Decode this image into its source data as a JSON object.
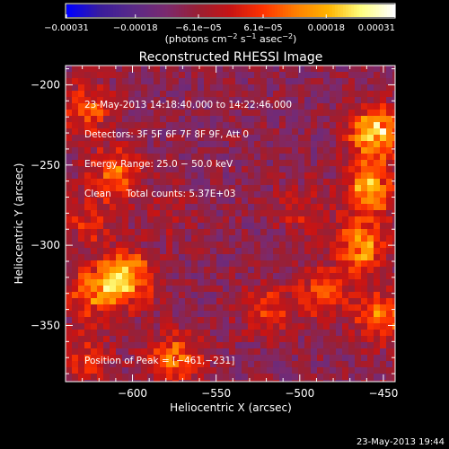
{
  "chart_data": {
    "type": "heatmap",
    "title": "Reconstructed RHESSI Image",
    "xlabel": "Heliocentric X (arcsec)",
    "ylabel": "Heliocentric Y (arcsec)",
    "xlim": [
      -640,
      -443
    ],
    "ylim": [
      -385,
      -188
    ],
    "x_ticks": [
      -600,
      -550,
      -500,
      -450
    ],
    "x_tick_labels": [
      "−600",
      "−550",
      "−500",
      "−450"
    ],
    "y_ticks": [
      -200,
      -250,
      -300,
      -350
    ],
    "y_tick_labels": [
      "−200",
      "−250",
      "−300",
      "−350"
    ],
    "colorbar": {
      "min": -0.00031,
      "max": 0.00031,
      "ticks": [
        -0.00031,
        -0.00018,
        -6.1e-05,
        6.1e-05,
        0.00018,
        0.00031
      ],
      "tick_labels": [
        "−0.00031",
        "−0.00018",
        "−6.1e−05",
        "6.1e−05",
        "0.00018",
        "0.00031"
      ],
      "units_prefix": "(photons cm",
      "units_exp1": "−2",
      "units_mid": " s",
      "units_exp2": "−1",
      "units_mid2": " asec",
      "units_exp3": "−2",
      "units_suffix": ")",
      "colormap": [
        "#0000ff",
        "#3a1d9c",
        "#5a2a88",
        "#7a2a70",
        "#9a1f33",
        "#c81414",
        "#ff3300",
        "#ff7f00",
        "#ffb400",
        "#ffff80",
        "#ffffff"
      ]
    },
    "info_lines": [
      "23‑May‑2013 14:18:40.000 to 14:22:46.000",
      "Detectors: 3F 5F 6F 7F 8F 9F, Att 0",
      "Energy Range: 25.0 − 50.0 keV",
      "Clean     Total counts: 5.37E+03"
    ],
    "peak_label": "Position of Peak = [−461,−231]",
    "peak_position": [
      -461,
      -231
    ],
    "sources": [
      {
        "x": -455,
        "y": -230,
        "value": 0.00031
      },
      {
        "x": -458,
        "y": -265,
        "value": 0.00024
      },
      {
        "x": -462,
        "y": -300,
        "value": 0.00023
      },
      {
        "x": -450,
        "y": -345,
        "value": 0.0002
      },
      {
        "x": -485,
        "y": -330,
        "value": 0.00017
      },
      {
        "x": -520,
        "y": -340,
        "value": 0.00013
      },
      {
        "x": -603,
        "y": -320,
        "value": 0.00026
      },
      {
        "x": -622,
        "y": -330,
        "value": 0.0002
      },
      {
        "x": -610,
        "y": -255,
        "value": 0.00018
      },
      {
        "x": -628,
        "y": -215,
        "value": 0.00016
      },
      {
        "x": -625,
        "y": -285,
        "value": 0.00012
      },
      {
        "x": -575,
        "y": -370,
        "value": 0.00019
      },
      {
        "x": -628,
        "y": -370,
        "value": 0.00011
      },
      {
        "x": -498,
        "y": -278,
        "value": 9e-05
      },
      {
        "x": -580,
        "y": -280,
        "value": 5e-05
      }
    ],
    "grid": false
  },
  "footer": {
    "timestamp": "23‑May‑2013 19:44"
  }
}
